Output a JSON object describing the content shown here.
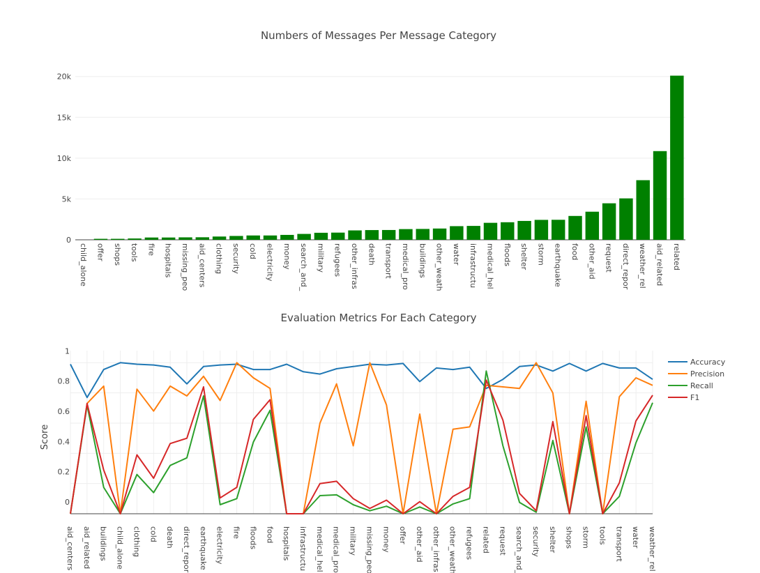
{
  "chart_data": [
    {
      "type": "bar",
      "title": "Numbers of Messages Per Message Category",
      "xlabel": "",
      "ylabel": "",
      "ylim": [
        0,
        21000
      ],
      "yticks": [
        0,
        5000,
        10000,
        15000,
        20000
      ],
      "ytick_labels": [
        "0",
        "5k",
        "10k",
        "15k",
        "20k"
      ],
      "bar_color": "#008000",
      "grid": true,
      "categories": [
        "child_alone",
        "offer",
        "shops",
        "tools",
        "fire",
        "hospitals",
        "missing_peo",
        "aid_centers",
        "clothing",
        "security",
        "cold",
        "electricity",
        "money",
        "search_and_",
        "military",
        "refugees",
        "other_infras",
        "death",
        "transport",
        "medical_pro",
        "buildings",
        "other_weath",
        "water",
        "infrastructu",
        "medical_hel",
        "floods",
        "shelter",
        "storm",
        "earthquake",
        "food",
        "other_aid",
        "request",
        "direct_repor",
        "weather_rel",
        "aid_related",
        "related"
      ],
      "values": [
        0,
        120,
        120,
        160,
        280,
        280,
        300,
        310,
        400,
        470,
        530,
        530,
        600,
        720,
        860,
        880,
        1150,
        1190,
        1200,
        1310,
        1330,
        1380,
        1670,
        1700,
        2080,
        2150,
        2310,
        2440,
        2450,
        2920,
        3440,
        4470,
        5070,
        7300,
        10860,
        20100
      ]
    },
    {
      "type": "line",
      "title": "Evaluation Metrics For Each Category",
      "xlabel": "",
      "ylabel": "Score",
      "ylim": [
        0,
        1.08
      ],
      "yticks": [
        0,
        0.2,
        0.4,
        0.6,
        0.8,
        1
      ],
      "ytick_labels": [
        "0",
        "0.2",
        "0.4",
        "0.6",
        "0.8",
        "1"
      ],
      "grid": true,
      "legend_position": "right",
      "categories": [
        "aid_centers",
        "aid_related",
        "buildings",
        "child_alone",
        "clothing",
        "cold",
        "death",
        "direct_repor",
        "earthquake",
        "electricity",
        "fire",
        "floods",
        "food",
        "hospitals",
        "infrastructu",
        "medical_hel",
        "medical_pro",
        "military",
        "missing_peo",
        "money",
        "offer",
        "other_aid",
        "other_infras",
        "other_weath",
        "refugees",
        "related",
        "request",
        "search_and_",
        "security",
        "shelter",
        "shops",
        "storm",
        "tools",
        "transport",
        "water",
        "weather_rel"
      ],
      "series": [
        {
          "name": "Accuracy",
          "color": "#1f77b4",
          "values": [
            0.99,
            0.77,
            0.955,
            1.0,
            0.99,
            0.985,
            0.97,
            0.86,
            0.975,
            0.985,
            0.99,
            0.955,
            0.955,
            0.99,
            0.94,
            0.925,
            0.96,
            0.975,
            0.99,
            0.985,
            0.995,
            0.875,
            0.965,
            0.955,
            0.97,
            0.83,
            0.89,
            0.975,
            0.985,
            0.945,
            0.995,
            0.945,
            0.995,
            0.965,
            0.965,
            0.89
          ]
        },
        {
          "name": "Precision",
          "color": "#ff7f0e",
          "values": [
            0.0,
            0.73,
            0.845,
            0.0,
            0.825,
            0.68,
            0.845,
            0.78,
            0.91,
            0.75,
            1.0,
            0.9,
            0.83,
            0.0,
            0.0,
            0.6,
            0.86,
            0.45,
            1.0,
            0.72,
            0.0,
            0.66,
            0.0,
            0.56,
            0.575,
            0.85,
            0.84,
            0.83,
            1.0,
            0.8,
            0.0,
            0.745,
            0.0,
            0.775,
            0.9,
            0.85
          ]
        },
        {
          "name": "Recall",
          "color": "#2ca02c",
          "values": [
            0.0,
            0.72,
            0.175,
            0.0,
            0.26,
            0.14,
            0.32,
            0.37,
            0.78,
            0.06,
            0.1,
            0.475,
            0.685,
            0.0,
            0.0,
            0.12,
            0.125,
            0.06,
            0.02,
            0.05,
            0.0,
            0.045,
            0.0,
            0.065,
            0.1,
            0.945,
            0.45,
            0.075,
            0.01,
            0.485,
            0.0,
            0.575,
            0.0,
            0.115,
            0.47,
            0.735
          ]
        },
        {
          "name": "F1",
          "color": "#d62728",
          "values": [
            0.0,
            0.73,
            0.29,
            0.0,
            0.39,
            0.235,
            0.465,
            0.5,
            0.84,
            0.105,
            0.175,
            0.625,
            0.755,
            0.0,
            0.0,
            0.2,
            0.215,
            0.1,
            0.035,
            0.09,
            0.0,
            0.08,
            0.0,
            0.115,
            0.175,
            0.885,
            0.62,
            0.135,
            0.02,
            0.61,
            0.0,
            0.65,
            0.0,
            0.205,
            0.615,
            0.785
          ]
        }
      ]
    }
  ]
}
